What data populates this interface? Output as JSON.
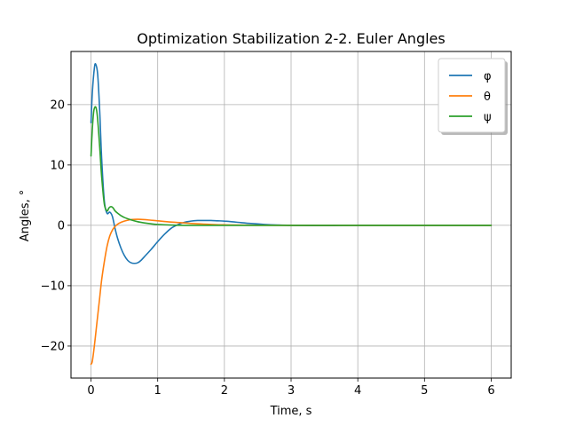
{
  "chart_data": {
    "type": "line",
    "title": "Optimization Stabilization 2-2. Euler Angles",
    "xlabel": "Time, s",
    "ylabel": "Angles, °",
    "xlim": [
      -0.3,
      6.3
    ],
    "ylim": [
      -25.3,
      28.8
    ],
    "xticks": [
      0,
      1,
      2,
      3,
      4,
      5,
      6
    ],
    "xtick_labels": [
      "0",
      "1",
      "2",
      "3",
      "4",
      "5",
      "6"
    ],
    "yticks": [
      -20,
      -10,
      0,
      10,
      20
    ],
    "ytick_labels": [
      "−20",
      "−10",
      "0",
      "10",
      "20"
    ],
    "grid": true,
    "legend_position": "top-right",
    "series": [
      {
        "name": "φ",
        "color": "#1f77b4",
        "x": [
          0,
          0.02,
          0.05,
          0.07,
          0.1,
          0.13,
          0.16,
          0.2,
          0.24,
          0.28,
          0.32,
          0.36,
          0.4,
          0.45,
          0.5,
          0.55,
          0.6,
          0.65,
          0.7,
          0.75,
          0.8,
          0.9,
          1.0,
          1.1,
          1.2,
          1.3,
          1.4,
          1.5,
          1.6,
          1.7,
          1.8,
          1.9,
          2.0,
          2.2,
          2.4,
          2.6,
          2.8,
          3.0,
          3.5,
          4.0,
          5.0,
          6.0
        ],
        "y": [
          17,
          22,
          26,
          26.7,
          25,
          19,
          11,
          4,
          2,
          2.2,
          1.5,
          -0.5,
          -2.2,
          -3.8,
          -5,
          -5.8,
          -6.2,
          -6.3,
          -6.2,
          -5.8,
          -5.2,
          -4,
          -2.7,
          -1.5,
          -0.5,
          0.1,
          0.5,
          0.7,
          0.8,
          0.8,
          0.8,
          0.75,
          0.7,
          0.5,
          0.3,
          0.15,
          0.05,
          0,
          -0.05,
          0,
          0,
          0
        ]
      },
      {
        "name": "θ",
        "color": "#ff7f0e",
        "x": [
          0,
          0.02,
          0.05,
          0.08,
          0.1,
          0.13,
          0.16,
          0.2,
          0.24,
          0.28,
          0.32,
          0.36,
          0.4,
          0.45,
          0.5,
          0.55,
          0.6,
          0.7,
          0.8,
          0.9,
          1.0,
          1.2,
          1.4,
          1.6,
          1.8,
          2.0,
          2.5,
          3.0,
          4.0,
          6.0
        ],
        "y": [
          -23,
          -22.5,
          -20,
          -17,
          -15,
          -12,
          -9,
          -6,
          -3.5,
          -1.8,
          -0.8,
          -0.2,
          0.2,
          0.5,
          0.7,
          0.85,
          0.95,
          1.0,
          0.95,
          0.85,
          0.75,
          0.55,
          0.4,
          0.25,
          0.15,
          0.08,
          0.02,
          0,
          0,
          0
        ]
      },
      {
        "name": "ψ",
        "color": "#2ca02c",
        "x": [
          0,
          0.02,
          0.04,
          0.06,
          0.08,
          0.1,
          0.13,
          0.16,
          0.2,
          0.24,
          0.27,
          0.3,
          0.33,
          0.36,
          0.4,
          0.45,
          0.5,
          0.6,
          0.7,
          0.8,
          0.9,
          1.0,
          1.2,
          1.4,
          1.6,
          1.8,
          2.0,
          2.5,
          3.0,
          4.0,
          6.0
        ],
        "y": [
          11.5,
          16,
          18.8,
          19.6,
          19.3,
          17.5,
          13,
          8,
          3.5,
          2.4,
          2.9,
          3.1,
          2.9,
          2.4,
          2.0,
          1.6,
          1.3,
          0.9,
          0.6,
          0.4,
          0.25,
          0.15,
          0.05,
          0,
          0,
          0,
          0,
          0,
          0,
          0,
          0
        ]
      }
    ]
  }
}
